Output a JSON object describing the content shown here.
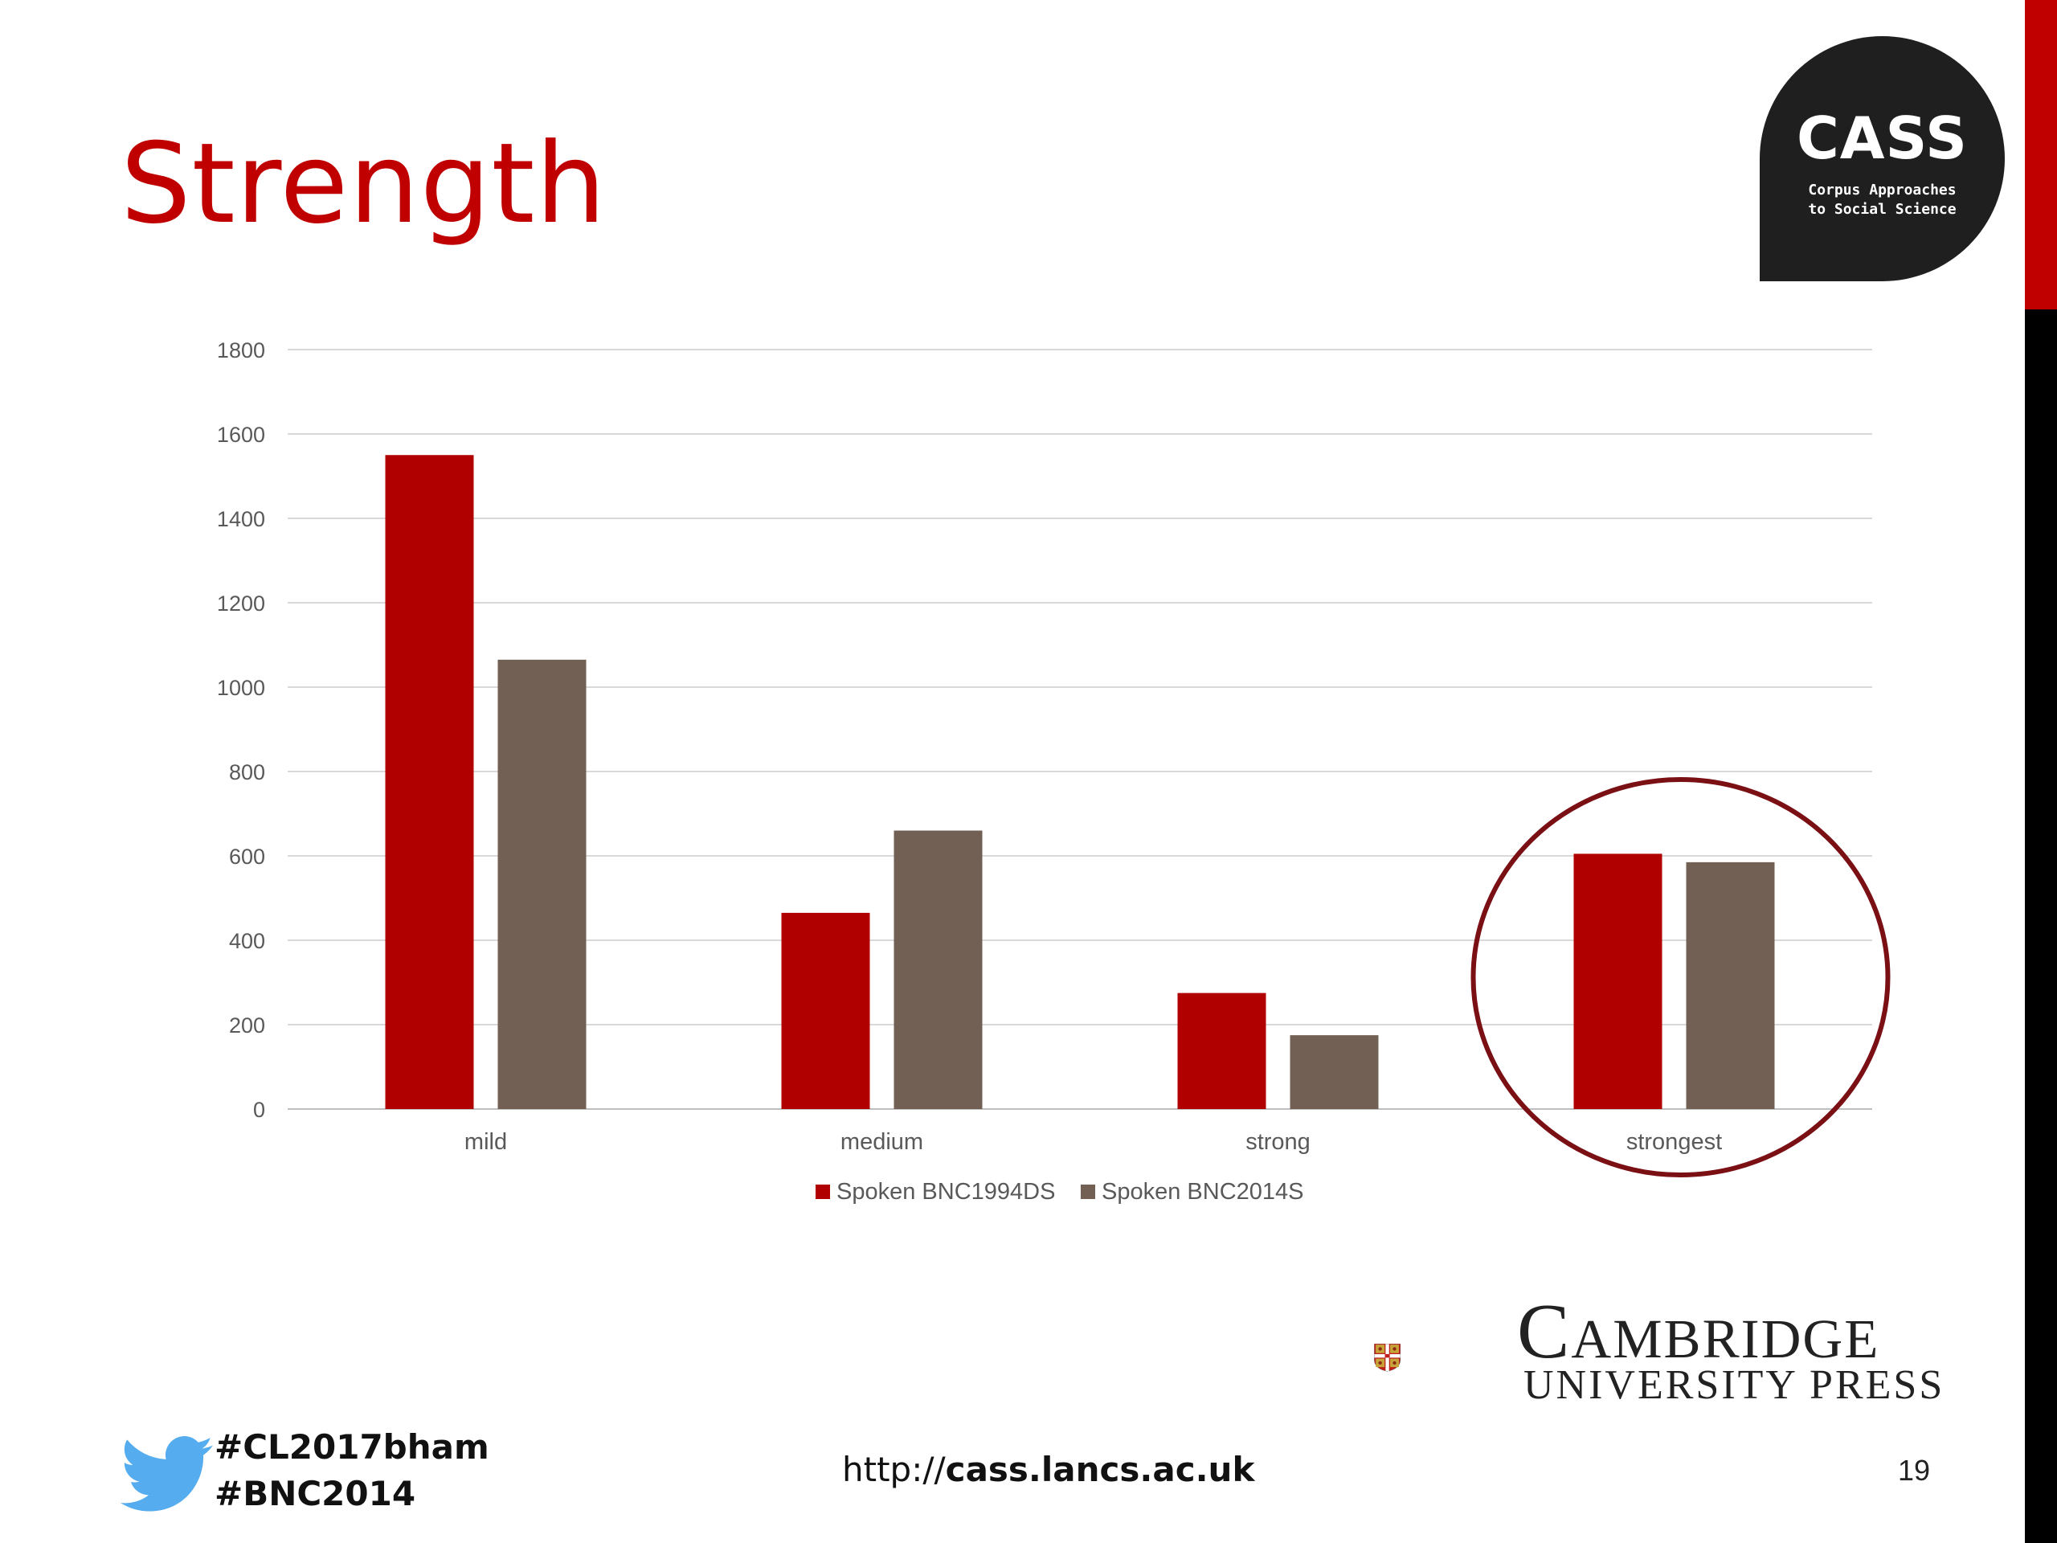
{
  "slide": {
    "title": "Strength",
    "page_number": "19",
    "url_prefix": "http://",
    "url_bold": "cass.lancs.ac.uk",
    "hashtags": [
      "#CL2017bham",
      "#BNC2014"
    ],
    "accent_color": "#c00000"
  },
  "cass_logo": {
    "name": "CASS",
    "subtitle_line1": "Corpus Approaches",
    "subtitle_line2": "to Social Science"
  },
  "publisher_logo": {
    "line1": "Cambridge",
    "line2": "UNIVERSITY PRESS",
    "icon": "cambridge-shield-icon"
  },
  "twitter": {
    "icon": "twitter-bird-icon",
    "color": "#55acee"
  },
  "chart_data": {
    "type": "bar",
    "categories": [
      "mild",
      "medium",
      "strong",
      "strongest"
    ],
    "series": [
      {
        "name": "Spoken BNC1994DS",
        "values": [
          1550,
          465,
          275,
          605
        ],
        "color": "#b00000"
      },
      {
        "name": "Spoken BNC2014S",
        "values": [
          1065,
          660,
          175,
          585
        ],
        "color": "#736055"
      }
    ],
    "ylim": [
      0,
      1800
    ],
    "yticks": [
      0,
      200,
      400,
      600,
      800,
      1000,
      1200,
      1400,
      1600,
      1800
    ],
    "grid": true,
    "legend_position": "bottom",
    "highlighted_category": "strongest",
    "highlight_color": "#7a0f14"
  }
}
